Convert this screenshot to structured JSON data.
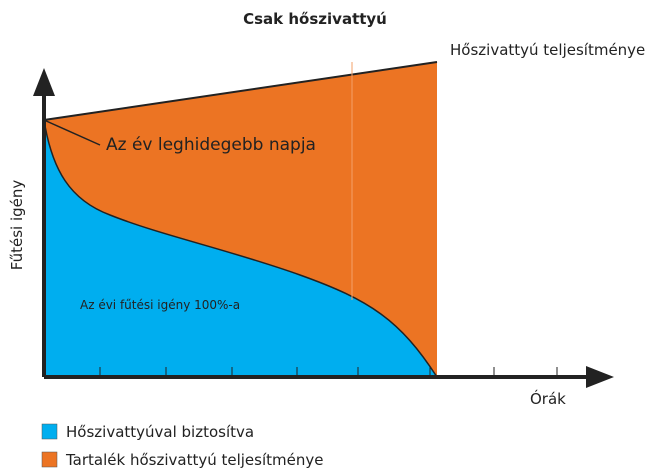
{
  "title": "Csak hőszivattyú",
  "labels": {
    "capacity": "Hőszivattyú teljesítménye",
    "coldest_day": "Az év leghidegebb napja",
    "y_axis": "Fűtési igény",
    "x_axis": "Órák",
    "annual": "Az évi fűtési igény 100%-a"
  },
  "legend": [
    {
      "label": "Hőszivattyúval biztosítva",
      "color": "#00aeef"
    },
    {
      "label": "Tartalék hőszivattyú teljesítménye",
      "color": "#ec7423"
    }
  ]
}
